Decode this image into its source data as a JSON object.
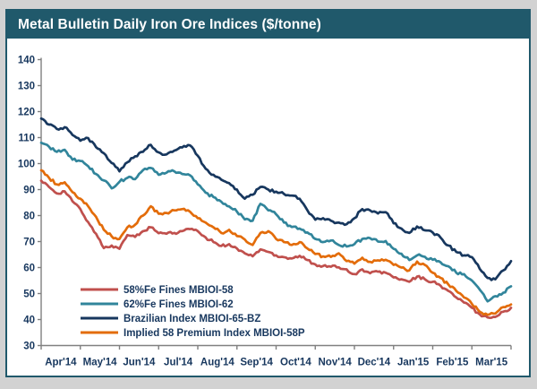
{
  "title": "Metal Bulletin Daily Iron Ore Indices ($/tonne)",
  "colors": {
    "frame_teal": "#20596b",
    "axis_gray": "#808080",
    "label_navy": "#17375e",
    "background": "#ffffff",
    "page_gray": "#d2d2d2"
  },
  "chart_data": {
    "type": "line",
    "title": "Metal Bulletin Daily Iron Ore Indices ($/tonne)",
    "ylabel": "$/tonne",
    "ylim": [
      30,
      140
    ],
    "ytick_interval": 10,
    "ytick_labels": [
      "140",
      "130",
      "120",
      "110",
      "100",
      "90",
      "80",
      "70",
      "60",
      "50",
      "40",
      "30"
    ],
    "x_tick_labels": [
      "Apr'14",
      "May'14",
      "Jun'14",
      "Jul'14",
      "Aug'14",
      "Sep'14",
      "Oct'14",
      "Nov'14",
      "Dec'14",
      "Jan'15",
      "Feb'15",
      "Mar'15"
    ],
    "grid": false,
    "legend_position": "lower-left",
    "series": [
      {
        "name": "58%Fe Fines MBIOI-58",
        "color": "#c0504d",
        "values": [
          93.4,
          91.0,
          88.5,
          89.3,
          85.5,
          82.5,
          77.5,
          73.0,
          67.5,
          68.5,
          67.2,
          72.5,
          71.8,
          74.0,
          75.5,
          73.2,
          73.0,
          73.3,
          74.0,
          74.8,
          74.0,
          71.6,
          69.8,
          68.3,
          69.0,
          67.3,
          65.5,
          64.3,
          67.0,
          66.0,
          64.7,
          64.0,
          63.5,
          64.5,
          62.9,
          61.2,
          60.6,
          60.3,
          60.1,
          59.3,
          57.5,
          59.3,
          57.8,
          58.4,
          58.0,
          56.2,
          55.5,
          54.5,
          56.5,
          55.5,
          54.5,
          53.0,
          51.0,
          48.5,
          46.5,
          44.5,
          42.0,
          40.8,
          41.0,
          43.0,
          44.5
        ]
      },
      {
        "name": "62%Fe Fines MBIOI-62",
        "color": "#31859b",
        "values": [
          108.0,
          106.5,
          104.5,
          105.3,
          101.5,
          101.0,
          99.0,
          96.0,
          93.5,
          90.5,
          93.0,
          94.5,
          94.0,
          97.5,
          98.3,
          95.7,
          96.5,
          97.0,
          96.0,
          95.5,
          92.0,
          88.8,
          87.1,
          85.3,
          83.5,
          81.5,
          78.5,
          78.0,
          84.5,
          82.0,
          80.5,
          77.3,
          75.6,
          75.0,
          73.5,
          71.0,
          69.8,
          70.4,
          68.7,
          68.1,
          69.0,
          71.0,
          71.3,
          70.0,
          70.2,
          67.2,
          65.3,
          62.9,
          64.7,
          64.1,
          63.0,
          62.0,
          60.5,
          58.0,
          57.5,
          55.0,
          51.5,
          47.0,
          49.0,
          50.3,
          52.8
        ]
      },
      {
        "name": "Brazilian Index MBIOI-65-BZ",
        "color": "#17375e",
        "values": [
          117.3,
          115.0,
          113.3,
          114.0,
          111.0,
          108.8,
          109.8,
          106.3,
          104.0,
          100.2,
          97.0,
          100.5,
          102.8,
          104.5,
          107.2,
          104.3,
          103.5,
          105.0,
          106.2,
          107.0,
          103.0,
          98.0,
          95.7,
          93.8,
          92.5,
          90.0,
          86.5,
          88.0,
          91.0,
          90.0,
          89.2,
          88.3,
          87.7,
          86.5,
          82.0,
          78.4,
          79.0,
          78.0,
          77.3,
          76.7,
          79.0,
          82.5,
          82.0,
          80.8,
          81.3,
          77.0,
          75.0,
          73.3,
          75.8,
          74.3,
          73.5,
          71.5,
          68.5,
          66.0,
          64.7,
          64.0,
          59.5,
          56.0,
          55.5,
          58.9,
          62.5
        ]
      },
      {
        "name": "Implied 58 Premium Index MBIOI-58P",
        "color": "#e36c0a",
        "values": [
          97.4,
          94.5,
          92.0,
          92.8,
          89.0,
          86.5,
          83.6,
          79.5,
          74.5,
          72.0,
          71.0,
          75.5,
          76.5,
          80.0,
          83.6,
          80.7,
          81.0,
          82.0,
          82.5,
          81.5,
          79.0,
          77.3,
          75.5,
          73.3,
          74.5,
          72.1,
          70.8,
          68.7,
          73.3,
          74.0,
          71.0,
          69.8,
          68.7,
          69.8,
          67.3,
          65.2,
          64.3,
          64.1,
          65.5,
          62.5,
          61.5,
          63.8,
          62.2,
          62.8,
          63.0,
          61.0,
          60.0,
          58.9,
          62.3,
          61.0,
          58.0,
          56.0,
          53.5,
          51.0,
          48.5,
          46.0,
          43.0,
          41.8,
          42.3,
          44.8,
          45.8
        ]
      }
    ]
  }
}
